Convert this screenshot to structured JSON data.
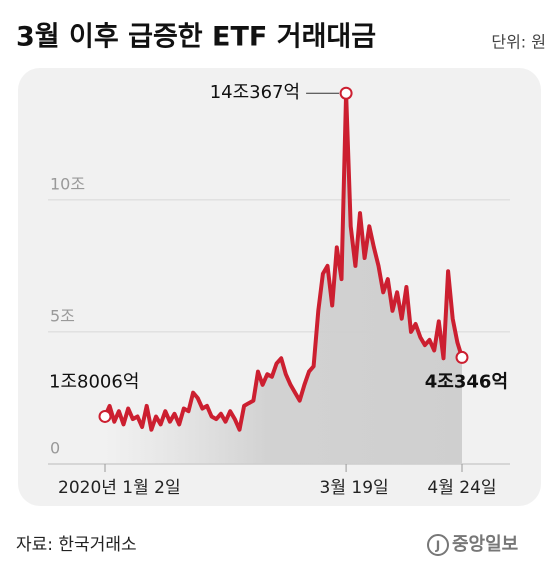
{
  "chart_data": {
    "type": "line",
    "title": "3월 이후 급증한 ETF 거래대금",
    "unit_label": "단위: 원",
    "source": "자료: 한국거래소",
    "logo": "중앙일보",
    "categories": [
      "2020년 1월 2일",
      null,
      null,
      null,
      null,
      null,
      null,
      null,
      null,
      null,
      null,
      null,
      null,
      null,
      null,
      null,
      null,
      null,
      null,
      null,
      null,
      null,
      null,
      null,
      null,
      null,
      null,
      null,
      null,
      null,
      null,
      null,
      null,
      null,
      null,
      null,
      null,
      null,
      null,
      null,
      null,
      null,
      null,
      null,
      null,
      null,
      null,
      null,
      null,
      null,
      null,
      null,
      "3월 19일",
      null,
      null,
      null,
      null,
      null,
      null,
      null,
      null,
      null,
      null,
      null,
      null,
      null,
      null,
      null,
      null,
      null,
      null,
      null,
      null,
      null,
      null,
      null,
      null,
      "4월 24일"
    ],
    "series": [
      {
        "name": "ETF 거래대금",
        "color": "#cc1f30",
        "values": [
          1.8006,
          2.2,
          1.6,
          2.0,
          1.5,
          2.1,
          1.7,
          1.8,
          1.4,
          2.2,
          1.3,
          1.8,
          1.5,
          2.0,
          1.6,
          1.9,
          1.5,
          2.1,
          2.0,
          2.7,
          2.5,
          2.1,
          2.2,
          1.8,
          1.7,
          1.9,
          1.6,
          2.0,
          1.7,
          1.3,
          2.2,
          2.3,
          2.4,
          3.5,
          3.0,
          3.4,
          3.3,
          3.8,
          4.0,
          3.4,
          3.0,
          2.7,
          2.4,
          3.0,
          3.5,
          3.7,
          5.8,
          7.2,
          7.5,
          6.0,
          8.2,
          7.0,
          14.0367,
          9.0,
          7.5,
          9.5,
          7.8,
          9.0,
          8.2,
          7.5,
          6.5,
          7.0,
          5.8,
          6.5,
          5.5,
          6.7,
          5.0,
          5.3,
          4.8,
          4.5,
          4.7,
          4.3,
          5.4,
          4.0,
          7.3,
          5.5,
          4.6,
          4.0346
        ],
        "value_labels": [
          "1조8006억",
          null,
          null,
          null,
          null,
          null,
          null,
          null,
          null,
          null,
          null,
          null,
          null,
          null,
          null,
          null,
          null,
          null,
          null,
          null,
          null,
          null,
          null,
          null,
          null,
          null,
          null,
          null,
          null,
          null,
          null,
          null,
          null,
          null,
          null,
          null,
          null,
          null,
          null,
          null,
          null,
          null,
          null,
          null,
          null,
          null,
          null,
          null,
          null,
          null,
          null,
          null,
          "14조367억",
          null,
          null,
          null,
          null,
          null,
          null,
          null,
          null,
          null,
          null,
          null,
          null,
          null,
          null,
          null,
          null,
          null,
          null,
          null,
          null,
          null,
          null,
          null,
          null,
          "4조346억"
        ]
      }
    ],
    "ylim": [
      0,
      14.5
    ],
    "yticks": [
      0,
      {
        "value": 5,
        "label": "5조"
      },
      {
        "value": 10,
        "label": "10조"
      }
    ],
    "grid": true
  }
}
